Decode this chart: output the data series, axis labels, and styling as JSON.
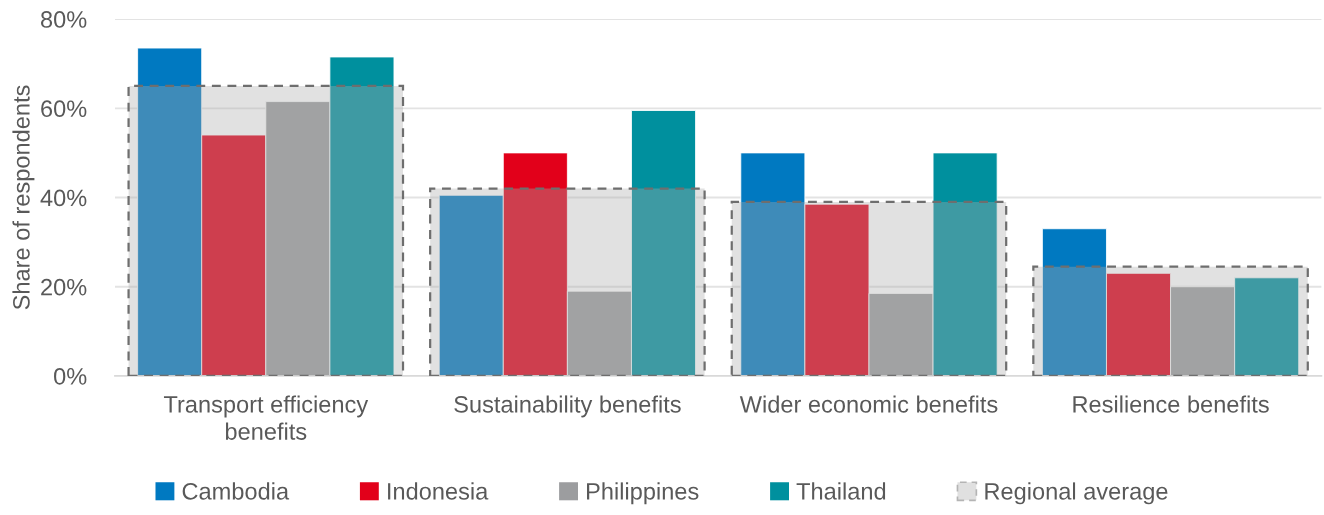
{
  "chart_data": {
    "type": "bar",
    "ylabel": "Share of respondents",
    "categories": [
      "Transport efficiency benefits",
      "Sustainability benefits",
      "Wider economic benefits",
      "Resilience benefits"
    ],
    "series": [
      {
        "name": "Cambodia",
        "color": "#0079c1",
        "values": [
          73.5,
          40.5,
          50,
          33
        ]
      },
      {
        "name": "Indonesia",
        "color": "#e2001a",
        "values": [
          54,
          50,
          38.5,
          23
        ]
      },
      {
        "name": "Philippines",
        "color": "#9c9d9f",
        "values": [
          61.5,
          19,
          18.5,
          20
        ]
      },
      {
        "name": "Thailand",
        "color": "#00909e",
        "values": [
          71.5,
          59.5,
          50,
          22
        ]
      },
      {
        "name": "Regional average",
        "color": "#ababab",
        "line_style": "dashed",
        "values": [
          65,
          42,
          39,
          24.5
        ]
      }
    ],
    "ylim": [
      0,
      80
    ],
    "yticks": [
      {
        "value": 0,
        "label": "0%"
      },
      {
        "value": 20,
        "label": "20%"
      },
      {
        "value": 40,
        "label": "40%"
      },
      {
        "value": 60,
        "label": "60%"
      },
      {
        "value": 80,
        "label": "80%"
      }
    ],
    "grid": "y",
    "legend": "bottom"
  }
}
